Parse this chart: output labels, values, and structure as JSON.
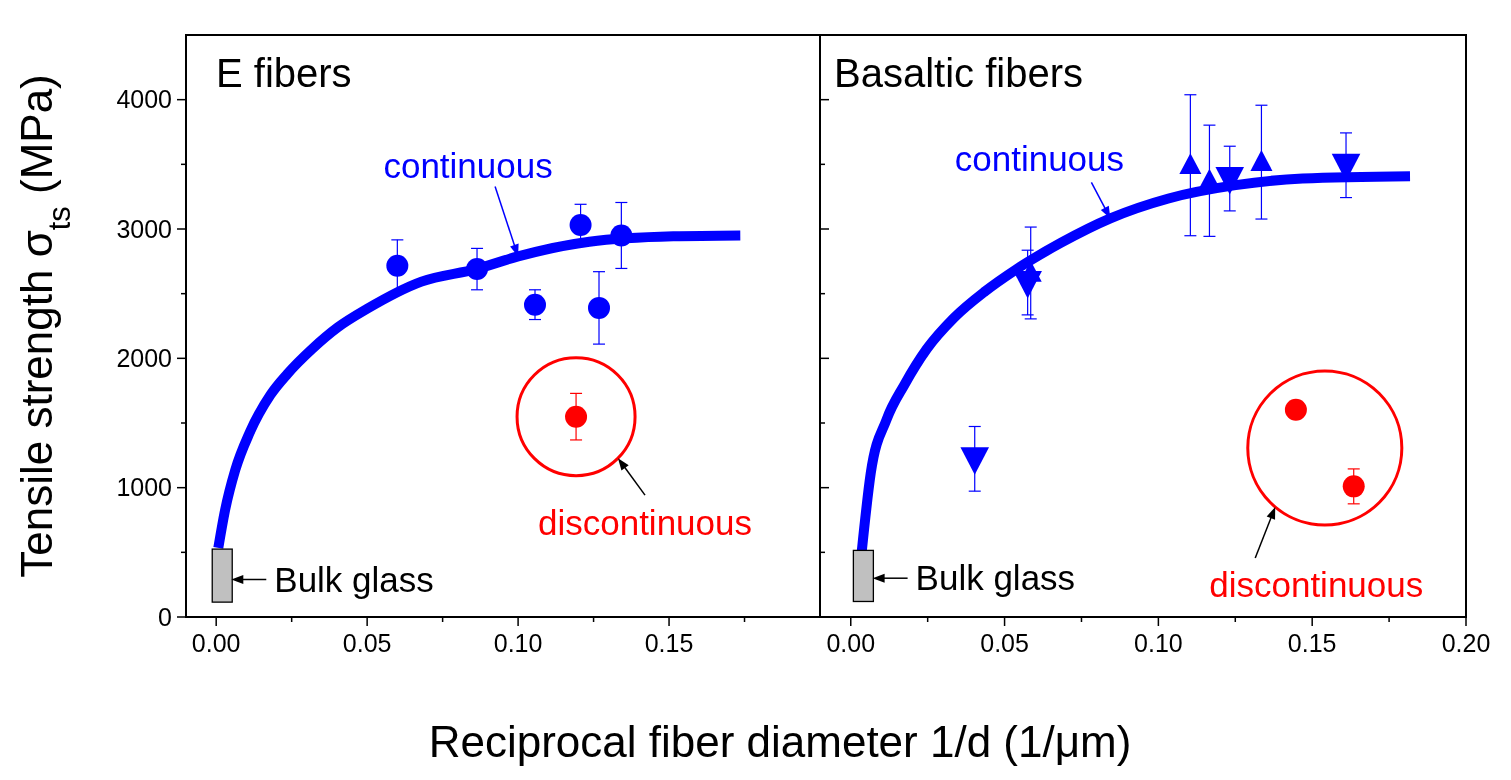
{
  "chart_data": [
    {
      "type": "scatter",
      "title": "E fibers",
      "ylabel": "Tensile strength σ$_{ts}$ (MPa)",
      "xlabel": "Reciprocal fiber diameter 1/d (1/μm)",
      "xlim": [
        -0.01,
        0.2
      ],
      "xticks": [
        {
          "value": 0,
          "label": "0.00"
        },
        {
          "value": 0.025,
          "label": null
        },
        {
          "value": 0.05,
          "label": "0.05"
        },
        {
          "value": 0.075,
          "label": null
        },
        {
          "value": 0.1,
          "label": "0.10"
        },
        {
          "value": 0.125,
          "label": null
        },
        {
          "value": 0.15,
          "label": "0.15"
        },
        {
          "value": 0.175,
          "label": null
        }
      ],
      "ylim": [
        0,
        4500
      ],
      "yticks": [
        0,
        {
          "value": 500,
          "label": null
        },
        1000,
        {
          "value": 1500,
          "label": null
        },
        2000,
        {
          "value": 2500,
          "label": null
        },
        3000,
        {
          "value": 3500,
          "label": null
        },
        4000
      ],
      "annotations": [
        {
          "text": "continuous",
          "x": 0.1,
          "y": 2788
        },
        "discontinuous",
        {
          "text": "Bulk glass",
          "x": 0.005,
          "y": 290
        }
      ],
      "series": [
        {
          "type": "line",
          "color": "#0000ff",
          "x": [
            0.0007,
            0.0028,
            0.0063,
            0.0111,
            0.018,
            0.0236,
            0.0319,
            0.0403,
            0.05,
            0.068,
            0.0861,
            0.1,
            0.1236,
            0.1514,
            0.1736
          ],
          "values": [
            535,
            810,
            1135,
            1426,
            1718,
            1880,
            2075,
            2240,
            2383,
            2593,
            2690,
            2788,
            2901,
            2943,
            2950
          ]
        },
        {
          "type": "bar",
          "color": "#c0c0c0",
          "x": [
            0.002
          ],
          "base": [
            115
          ],
          "values": [
            410
          ]
        },
        {
          "marker": "circle",
          "color": "#0000ff",
          "x": [
            0.06,
            0.0864,
            0.1056,
            0.1207,
            0.1268,
            0.1342
          ],
          "values": [
            2716,
            2690,
            2415,
            3031,
            2390,
            2950
          ],
          "errors": [
            200,
            160,
            115,
            160,
            280,
            255
          ]
        },
        {
          "marker": "circle",
          "color": "#ff0000",
          "x": [
            0.1192
          ],
          "values": [
            1549
          ],
          "errors": [
            180
          ]
        }
      ]
    },
    {
      "type": "scatter",
      "title": "Basaltic fibers",
      "tick_labels": "x",
      "xlim": [
        -0.01,
        0.2
      ],
      "xticks": [
        {
          "value": 0,
          "label": "0.00"
        },
        {
          "value": 0.025,
          "label": null
        },
        {
          "value": 0.05,
          "label": "0.05"
        },
        {
          "value": 0.075,
          "label": null
        },
        {
          "value": 0.1,
          "label": "0.10"
        },
        {
          "value": 0.125,
          "label": null
        },
        {
          "value": 0.15,
          "label": "0.15"
        },
        {
          "value": 0.175,
          "label": null
        },
        {
          "value": 0.2,
          "label": "0.20"
        }
      ],
      "ylim": [
        0,
        4500
      ],
      "yticks": [
        0,
        {
          "value": 500,
          "label": null
        },
        1000,
        {
          "value": 1500,
          "label": null
        },
        2000,
        {
          "value": 2500,
          "label": null
        },
        3000,
        {
          "value": 3500,
          "label": null
        },
        4000
      ],
      "annotations": [
        {
          "text": "continuous",
          "x": 0.0844,
          "y": 3082
        },
        "discontinuous",
        {
          "text": "Bulk glass",
          "x": 0.0071,
          "y": 300
        }
      ],
      "series": [
        {
          "type": "line",
          "color": "#0000ff",
          "x": [
            0.0036,
            0.0065,
            0.0116,
            0.0175,
            0.0247,
            0.0335,
            0.0436,
            0.0538,
            0.0684,
            0.0844,
            0.1033,
            0.1251,
            0.1469,
            0.1818
          ],
          "values": [
            514,
            1113,
            1524,
            1798,
            2072,
            2312,
            2517,
            2688,
            2894,
            3082,
            3236,
            3339,
            3390,
            3408
          ]
        },
        {
          "type": "bar",
          "color": "#c0c0c0",
          "x": [
            0.0041
          ],
          "base": [
            120
          ],
          "values": [
            395
          ]
        },
        {
          "marker": "triangle-down",
          "color": "#0000ff",
          "x": [
            0.0403,
            0.0575,
            0.1232,
            0.161
          ],
          "values": [
            1223,
            2586,
            3390,
            3493
          ],
          "errors": [
            250,
            250,
            250,
            250
          ]
        },
        {
          "marker": "triangle",
          "color": "#0000ff",
          "x": [
            0.0585,
            0.1104,
            0.1166,
            0.1335
          ],
          "values": [
            2660,
            3493,
            3373,
            3517
          ],
          "errors": [
            355,
            545,
            430,
            440
          ]
        },
        {
          "marker": "circle",
          "color": "#ff0000",
          "x": [
            0.1447,
            0.1635
          ],
          "values": [
            1603,
            1010
          ],
          "errors": [
            null,
            135
          ]
        }
      ]
    }
  ]
}
